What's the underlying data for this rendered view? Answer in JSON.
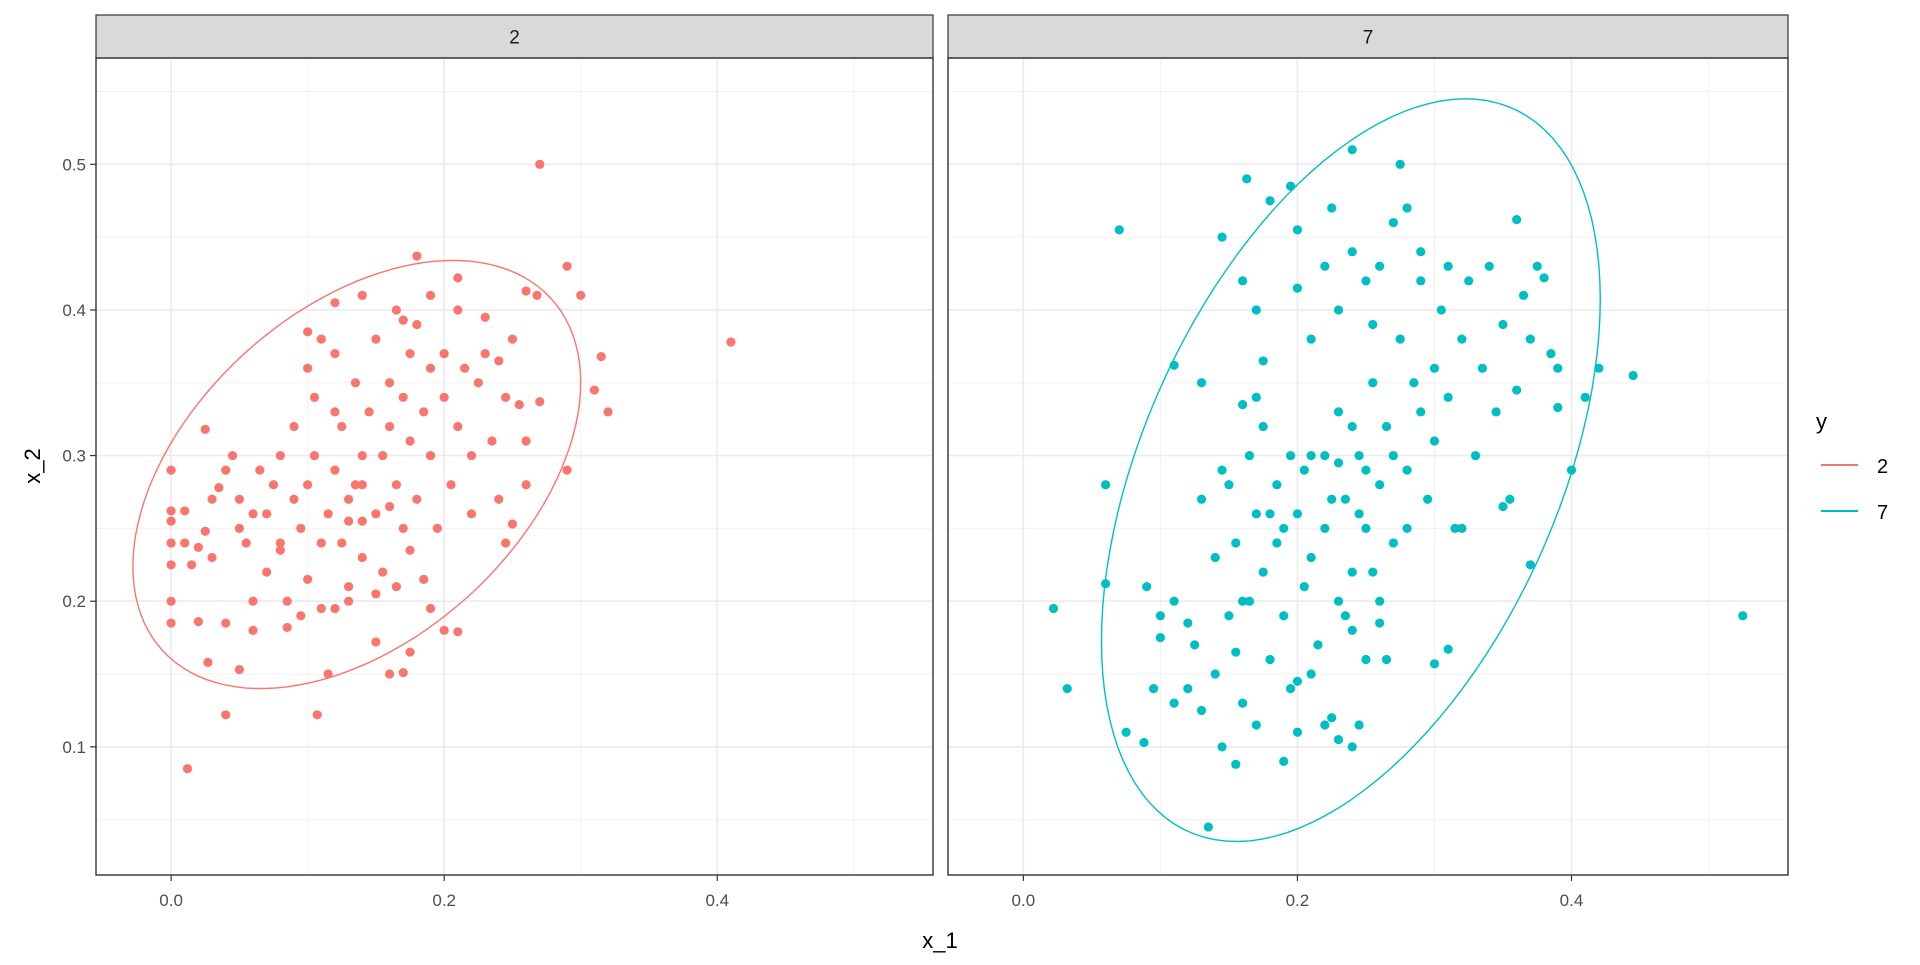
{
  "chart_data": {
    "type": "scatter",
    "facet_variable": "y",
    "xlabel": "x_1",
    "ylabel": "x_2",
    "xlim": [
      -0.055,
      0.558
    ],
    "ylim": [
      0.012,
      0.573
    ],
    "x_ticks": [
      0.0,
      0.2,
      0.4
    ],
    "x_tick_labels": [
      "0.0",
      "0.2",
      "0.4"
    ],
    "y_ticks": [
      0.1,
      0.2,
      0.3,
      0.4,
      0.5
    ],
    "y_tick_labels": [
      "0.1",
      "0.2",
      "0.3",
      "0.4",
      "0.5"
    ],
    "grid": true,
    "legend": {
      "title": "y",
      "placement": "right",
      "entries": [
        {
          "label": "2",
          "color": "#F8766D"
        },
        {
          "label": "7",
          "color": "#00BFC4"
        }
      ]
    },
    "panels": [
      {
        "strip": "2",
        "color": "#F8766D",
        "ellipse": {
          "cx": 0.136,
          "cy": 0.287,
          "x_semi": 0.164,
          "y_semi": 0.147,
          "cos_phase": 0.43
        },
        "points": [
          [
            0.27,
            0.5
          ],
          [
            0.41,
            0.378
          ],
          [
            0.012,
            0.085
          ],
          [
            0.04,
            0.122
          ],
          [
            0.107,
            0.122
          ],
          [
            0.29,
            0.43
          ],
          [
            0.3,
            0.41
          ],
          [
            0.32,
            0.33
          ],
          [
            0.315,
            0.368
          ],
          [
            0.31,
            0.345
          ],
          [
            0.29,
            0.29
          ],
          [
            0.18,
            0.437
          ],
          [
            0.21,
            0.422
          ],
          [
            0.0,
            0.29
          ],
          [
            0.0,
            0.185
          ],
          [
            0.0,
            0.2
          ],
          [
            0.02,
            0.186
          ],
          [
            0.027,
            0.158
          ],
          [
            0.05,
            0.153
          ],
          [
            0.06,
            0.18
          ],
          [
            0.085,
            0.182
          ],
          [
            0.115,
            0.15
          ],
          [
            0.15,
            0.172
          ],
          [
            0.16,
            0.15
          ],
          [
            0.17,
            0.151
          ],
          [
            0.175,
            0.165
          ],
          [
            0.2,
            0.18
          ],
          [
            0.21,
            0.179
          ],
          [
            0.19,
            0.195
          ],
          [
            0.04,
            0.185
          ],
          [
            0.0,
            0.225
          ],
          [
            0.0,
            0.24
          ],
          [
            0.0,
            0.255
          ],
          [
            0.0,
            0.262
          ],
          [
            0.01,
            0.262
          ],
          [
            0.01,
            0.24
          ],
          [
            0.015,
            0.225
          ],
          [
            0.02,
            0.237
          ],
          [
            0.025,
            0.248
          ],
          [
            0.03,
            0.23
          ],
          [
            0.025,
            0.318
          ],
          [
            0.03,
            0.27
          ],
          [
            0.035,
            0.278
          ],
          [
            0.04,
            0.29
          ],
          [
            0.045,
            0.3
          ],
          [
            0.05,
            0.25
          ],
          [
            0.05,
            0.27
          ],
          [
            0.055,
            0.24
          ],
          [
            0.06,
            0.26
          ],
          [
            0.065,
            0.29
          ],
          [
            0.07,
            0.22
          ],
          [
            0.07,
            0.26
          ],
          [
            0.075,
            0.28
          ],
          [
            0.08,
            0.3
          ],
          [
            0.08,
            0.24
          ],
          [
            0.085,
            0.2
          ],
          [
            0.09,
            0.27
          ],
          [
            0.09,
            0.32
          ],
          [
            0.095,
            0.25
          ],
          [
            0.1,
            0.28
          ],
          [
            0.1,
            0.36
          ],
          [
            0.1,
            0.215
          ],
          [
            0.105,
            0.3
          ],
          [
            0.105,
            0.34
          ],
          [
            0.11,
            0.195
          ],
          [
            0.11,
            0.38
          ],
          [
            0.115,
            0.26
          ],
          [
            0.12,
            0.29
          ],
          [
            0.12,
            0.37
          ],
          [
            0.125,
            0.24
          ],
          [
            0.125,
            0.32
          ],
          [
            0.13,
            0.21
          ],
          [
            0.13,
            0.27
          ],
          [
            0.135,
            0.35
          ],
          [
            0.135,
            0.28
          ],
          [
            0.14,
            0.3
          ],
          [
            0.14,
            0.23
          ],
          [
            0.145,
            0.33
          ],
          [
            0.15,
            0.26
          ],
          [
            0.15,
            0.38
          ],
          [
            0.155,
            0.3
          ],
          [
            0.155,
            0.22
          ],
          [
            0.16,
            0.35
          ],
          [
            0.16,
            0.32
          ],
          [
            0.165,
            0.28
          ],
          [
            0.165,
            0.4
          ],
          [
            0.17,
            0.25
          ],
          [
            0.17,
            0.34
          ],
          [
            0.175,
            0.31
          ],
          [
            0.175,
            0.37
          ],
          [
            0.18,
            0.27
          ],
          [
            0.18,
            0.39
          ],
          [
            0.185,
            0.33
          ],
          [
            0.185,
            0.215
          ],
          [
            0.19,
            0.36
          ],
          [
            0.19,
            0.3
          ],
          [
            0.195,
            0.25
          ],
          [
            0.2,
            0.34
          ],
          [
            0.2,
            0.37
          ],
          [
            0.205,
            0.28
          ],
          [
            0.21,
            0.32
          ],
          [
            0.21,
            0.4
          ],
          [
            0.215,
            0.36
          ],
          [
            0.22,
            0.3
          ],
          [
            0.22,
            0.26
          ],
          [
            0.225,
            0.35
          ],
          [
            0.23,
            0.37
          ],
          [
            0.235,
            0.31
          ],
          [
            0.24,
            0.365
          ],
          [
            0.24,
            0.27
          ],
          [
            0.245,
            0.34
          ],
          [
            0.25,
            0.38
          ],
          [
            0.25,
            0.253
          ],
          [
            0.255,
            0.335
          ],
          [
            0.26,
            0.31
          ],
          [
            0.26,
            0.28
          ],
          [
            0.26,
            0.413
          ],
          [
            0.27,
            0.337
          ],
          [
            0.268,
            0.41
          ],
          [
            0.245,
            0.24
          ],
          [
            0.06,
            0.2
          ],
          [
            0.095,
            0.19
          ],
          [
            0.12,
            0.195
          ],
          [
            0.13,
            0.2
          ],
          [
            0.15,
            0.205
          ],
          [
            0.165,
            0.21
          ],
          [
            0.175,
            0.235
          ],
          [
            0.08,
            0.235
          ],
          [
            0.11,
            0.24
          ],
          [
            0.14,
            0.255
          ],
          [
            0.12,
            0.405
          ],
          [
            0.14,
            0.41
          ],
          [
            0.17,
            0.393
          ],
          [
            0.19,
            0.41
          ],
          [
            0.23,
            0.395
          ],
          [
            0.1,
            0.385
          ],
          [
            0.12,
            0.33
          ],
          [
            0.14,
            0.28
          ],
          [
            0.16,
            0.265
          ],
          [
            0.13,
            0.255
          ]
        ]
      },
      {
        "strip": "7",
        "color": "#00BFC4",
        "ellipse": {
          "cx": 0.239,
          "cy": 0.29,
          "x_semi": 0.182,
          "y_semi": 0.255,
          "cos_phase": 0.46
        },
        "points": [
          [
            0.022,
            0.195
          ],
          [
            0.032,
            0.14
          ],
          [
            0.07,
            0.455
          ],
          [
            0.06,
            0.28
          ],
          [
            0.06,
            0.212
          ],
          [
            0.525,
            0.19
          ],
          [
            0.445,
            0.355
          ],
          [
            0.42,
            0.36
          ],
          [
            0.41,
            0.34
          ],
          [
            0.4,
            0.29
          ],
          [
            0.37,
            0.225
          ],
          [
            0.135,
            0.045
          ],
          [
            0.24,
            0.51
          ],
          [
            0.275,
            0.5
          ],
          [
            0.163,
            0.49
          ],
          [
            0.195,
            0.485
          ],
          [
            0.36,
            0.462
          ],
          [
            0.145,
            0.45
          ],
          [
            0.11,
            0.362
          ],
          [
            0.13,
            0.35
          ],
          [
            0.09,
            0.21
          ],
          [
            0.075,
            0.11
          ],
          [
            0.088,
            0.103
          ],
          [
            0.155,
            0.088
          ],
          [
            0.19,
            0.09
          ],
          [
            0.24,
            0.1
          ],
          [
            0.1,
            0.19
          ],
          [
            0.11,
            0.2
          ],
          [
            0.12,
            0.14
          ],
          [
            0.125,
            0.17
          ],
          [
            0.13,
            0.125
          ],
          [
            0.14,
            0.15
          ],
          [
            0.145,
            0.1
          ],
          [
            0.15,
            0.19
          ],
          [
            0.155,
            0.165
          ],
          [
            0.16,
            0.13
          ],
          [
            0.165,
            0.2
          ],
          [
            0.17,
            0.115
          ],
          [
            0.175,
            0.22
          ],
          [
            0.18,
            0.16
          ],
          [
            0.185,
            0.24
          ],
          [
            0.19,
            0.19
          ],
          [
            0.195,
            0.14
          ],
          [
            0.2,
            0.26
          ],
          [
            0.2,
            0.11
          ],
          [
            0.205,
            0.21
          ],
          [
            0.21,
            0.3
          ],
          [
            0.215,
            0.17
          ],
          [
            0.22,
            0.25
          ],
          [
            0.225,
            0.12
          ],
          [
            0.23,
            0.2
          ],
          [
            0.23,
            0.33
          ],
          [
            0.235,
            0.27
          ],
          [
            0.24,
            0.18
          ],
          [
            0.24,
            0.22
          ],
          [
            0.245,
            0.3
          ],
          [
            0.25,
            0.16
          ],
          [
            0.25,
            0.25
          ],
          [
            0.255,
            0.35
          ],
          [
            0.26,
            0.2
          ],
          [
            0.26,
            0.28
          ],
          [
            0.265,
            0.32
          ],
          [
            0.27,
            0.24
          ],
          [
            0.275,
            0.38
          ],
          [
            0.28,
            0.29
          ],
          [
            0.285,
            0.35
          ],
          [
            0.29,
            0.42
          ],
          [
            0.295,
            0.27
          ],
          [
            0.3,
            0.36
          ],
          [
            0.3,
            0.31
          ],
          [
            0.305,
            0.4
          ],
          [
            0.31,
            0.34
          ],
          [
            0.315,
            0.25
          ],
          [
            0.32,
            0.38
          ],
          [
            0.325,
            0.42
          ],
          [
            0.33,
            0.3
          ],
          [
            0.335,
            0.36
          ],
          [
            0.34,
            0.43
          ],
          [
            0.345,
            0.33
          ],
          [
            0.35,
            0.39
          ],
          [
            0.355,
            0.27
          ],
          [
            0.36,
            0.345
          ],
          [
            0.365,
            0.41
          ],
          [
            0.37,
            0.38
          ],
          [
            0.375,
            0.43
          ],
          [
            0.38,
            0.422
          ],
          [
            0.385,
            0.37
          ],
          [
            0.39,
            0.333
          ],
          [
            0.39,
            0.36
          ],
          [
            0.35,
            0.265
          ],
          [
            0.16,
            0.42
          ],
          [
            0.17,
            0.4
          ],
          [
            0.175,
            0.365
          ],
          [
            0.2,
            0.415
          ],
          [
            0.21,
            0.38
          ],
          [
            0.22,
            0.43
          ],
          [
            0.23,
            0.4
          ],
          [
            0.24,
            0.44
          ],
          [
            0.25,
            0.42
          ],
          [
            0.255,
            0.39
          ],
          [
            0.26,
            0.43
          ],
          [
            0.27,
            0.46
          ],
          [
            0.28,
            0.47
          ],
          [
            0.29,
            0.44
          ],
          [
            0.31,
            0.43
          ],
          [
            0.18,
            0.475
          ],
          [
            0.2,
            0.455
          ],
          [
            0.225,
            0.47
          ],
          [
            0.16,
            0.335
          ],
          [
            0.17,
            0.34
          ],
          [
            0.165,
            0.3
          ],
          [
            0.17,
            0.26
          ],
          [
            0.175,
            0.32
          ],
          [
            0.18,
            0.26
          ],
          [
            0.185,
            0.28
          ],
          [
            0.19,
            0.25
          ],
          [
            0.195,
            0.3
          ],
          [
            0.205,
            0.29
          ],
          [
            0.21,
            0.23
          ],
          [
            0.22,
            0.3
          ],
          [
            0.225,
            0.27
          ],
          [
            0.23,
            0.295
          ],
          [
            0.24,
            0.32
          ],
          [
            0.245,
            0.26
          ],
          [
            0.25,
            0.29
          ],
          [
            0.255,
            0.22
          ],
          [
            0.265,
            0.16
          ],
          [
            0.27,
            0.3
          ],
          [
            0.28,
            0.25
          ],
          [
            0.29,
            0.33
          ],
          [
            0.13,
            0.27
          ],
          [
            0.14,
            0.23
          ],
          [
            0.145,
            0.29
          ],
          [
            0.15,
            0.28
          ],
          [
            0.155,
            0.24
          ],
          [
            0.16,
            0.2
          ],
          [
            0.12,
            0.185
          ],
          [
            0.1,
            0.175
          ],
          [
            0.095,
            0.14
          ],
          [
            0.11,
            0.13
          ],
          [
            0.2,
            0.145
          ],
          [
            0.21,
            0.15
          ],
          [
            0.22,
            0.115
          ],
          [
            0.23,
            0.105
          ],
          [
            0.245,
            0.115
          ],
          [
            0.3,
            0.157
          ],
          [
            0.31,
            0.167
          ],
          [
            0.32,
            0.25
          ],
          [
            0.26,
            0.185
          ],
          [
            0.235,
            0.19
          ]
        ]
      }
    ]
  }
}
